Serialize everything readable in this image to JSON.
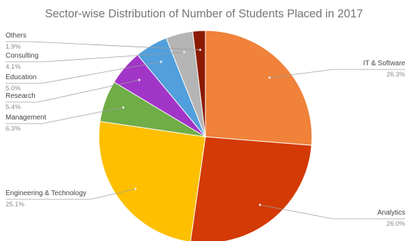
{
  "chart_data": {
    "type": "pie",
    "title": "Sector-wise Distribution of Number of Students Placed in 2017",
    "slices": [
      {
        "name": "IT & Software",
        "value": 26.3,
        "label": "26.3%",
        "color": "#F0823A"
      },
      {
        "name": "Analytics",
        "value": 26.0,
        "label": "26.0%",
        "color": "#D33A05"
      },
      {
        "name": "Engineering & Technology",
        "value": 25.1,
        "label": "25.1%",
        "color": "#FDBF00"
      },
      {
        "name": "Management",
        "value": 6.3,
        "label": "6.3%",
        "color": "#6FAD47"
      },
      {
        "name": "Research",
        "value": 5.4,
        "label": "5.4%",
        "color": "#A135C8"
      },
      {
        "name": "Education",
        "value": 5.0,
        "label": "5.0%",
        "color": "#519FDC"
      },
      {
        "name": "Consulting",
        "value": 4.1,
        "label": "4.1%",
        "color": "#B5B5B5"
      },
      {
        "name": "Others",
        "value": 1.9,
        "label": "1.9%",
        "color": "#8B1A04"
      }
    ],
    "legend": "labels-around"
  }
}
